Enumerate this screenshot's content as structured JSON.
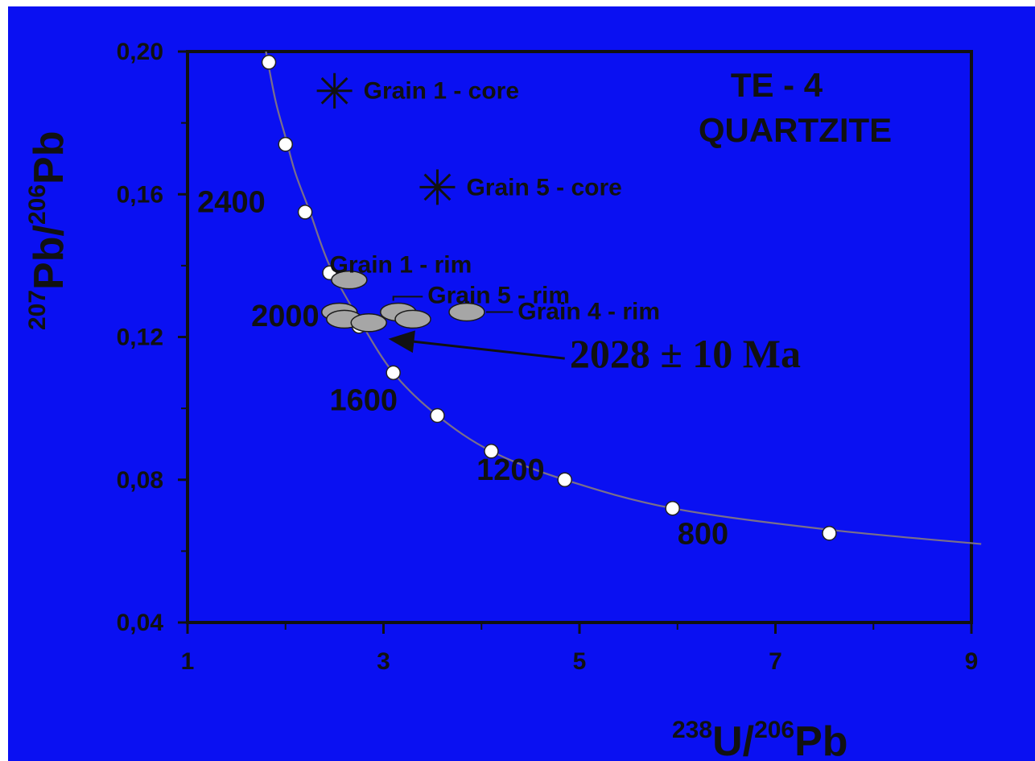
{
  "chart_data": {
    "type": "scatter",
    "title": "TE - 4",
    "subtitle": "QUARTZITE",
    "xlabel": {
      "prefix_sup": "238",
      "main": "U/",
      "mid_sup": "206",
      "tail": "Pb"
    },
    "ylabel": {
      "prefix_sup": "207",
      "main": "Pb/",
      "mid_sup": "206",
      "tail": "Pb"
    },
    "xlim": [
      1,
      9
    ],
    "ylim": [
      0.04,
      0.2
    ],
    "x_ticks": [
      "1",
      "3",
      "5",
      "7",
      "9"
    ],
    "x_tick_values": [
      1,
      3,
      5,
      7,
      9
    ],
    "y_ticks": [
      "0,04",
      "0,08",
      "0,12",
      "0,16",
      "0,20"
    ],
    "y_tick_values": [
      0.04,
      0.08,
      0.12,
      0.16,
      0.2
    ],
    "concordia_curve": {
      "x": [
        1.8,
        1.9,
        2.0,
        2.1,
        2.25,
        2.45,
        2.75,
        3.1,
        3.55,
        4.1,
        4.85,
        5.95,
        7.55,
        9.1
      ],
      "y": [
        0.2,
        0.186,
        0.176,
        0.166,
        0.155,
        0.14,
        0.125,
        0.11,
        0.098,
        0.088,
        0.08,
        0.072,
        0.066,
        0.062
      ]
    },
    "concordia_markers": {
      "x": [
        1.83,
        2.0,
        2.2,
        2.45,
        2.75,
        3.1,
        3.55,
        4.1,
        4.85,
        5.95,
        7.55
      ],
      "y": [
        0.197,
        0.174,
        0.155,
        0.138,
        0.123,
        0.11,
        0.098,
        0.088,
        0.08,
        0.072,
        0.065
      ]
    },
    "age_labels": [
      {
        "text": "2400",
        "x": 1.1,
        "y": 0.155
      },
      {
        "text": "2000",
        "x": 1.65,
        "y": 0.123
      },
      {
        "text": "1600",
        "x": 2.45,
        "y": 0.0995
      },
      {
        "text": "1200",
        "x": 3.95,
        "y": 0.08
      },
      {
        "text": "800",
        "x": 6.0,
        "y": 0.062
      }
    ],
    "core_points": [
      {
        "name": "Grain 1 - core",
        "x": 2.5,
        "y": 0.189
      },
      {
        "name": "Grain 5 - core",
        "x": 3.55,
        "y": 0.162
      }
    ],
    "rim_ellipses": [
      {
        "x": 2.65,
        "y": 0.136
      },
      {
        "x": 2.55,
        "y": 0.127
      },
      {
        "x": 2.6,
        "y": 0.125
      },
      {
        "x": 2.85,
        "y": 0.124
      },
      {
        "x": 3.15,
        "y": 0.127
      },
      {
        "x": 3.3,
        "y": 0.125
      },
      {
        "x": 3.85,
        "y": 0.127
      }
    ],
    "rim_labels": [
      {
        "name": "Grain 1 - rim",
        "x": 2.45,
        "y": 0.138
      },
      {
        "name": "Grain 5 - rim",
        "x": 3.45,
        "y": 0.1295
      },
      {
        "name": "Grain 4 - rim",
        "x": 4.37,
        "y": 0.125
      }
    ],
    "result": {
      "text": "2028 ± 10 Ma",
      "x": 4.9,
      "y": 0.1115
    },
    "arrow": {
      "from_x": 4.85,
      "from_y": 0.114,
      "to_x": 3.05,
      "to_y": 0.1195
    },
    "grid": false,
    "colors": {
      "background": "#0a10f2",
      "ink": "#111111",
      "marker": "#ffffff",
      "ellipse": "#a6a6a6",
      "curve": "#7a6f8a"
    }
  }
}
